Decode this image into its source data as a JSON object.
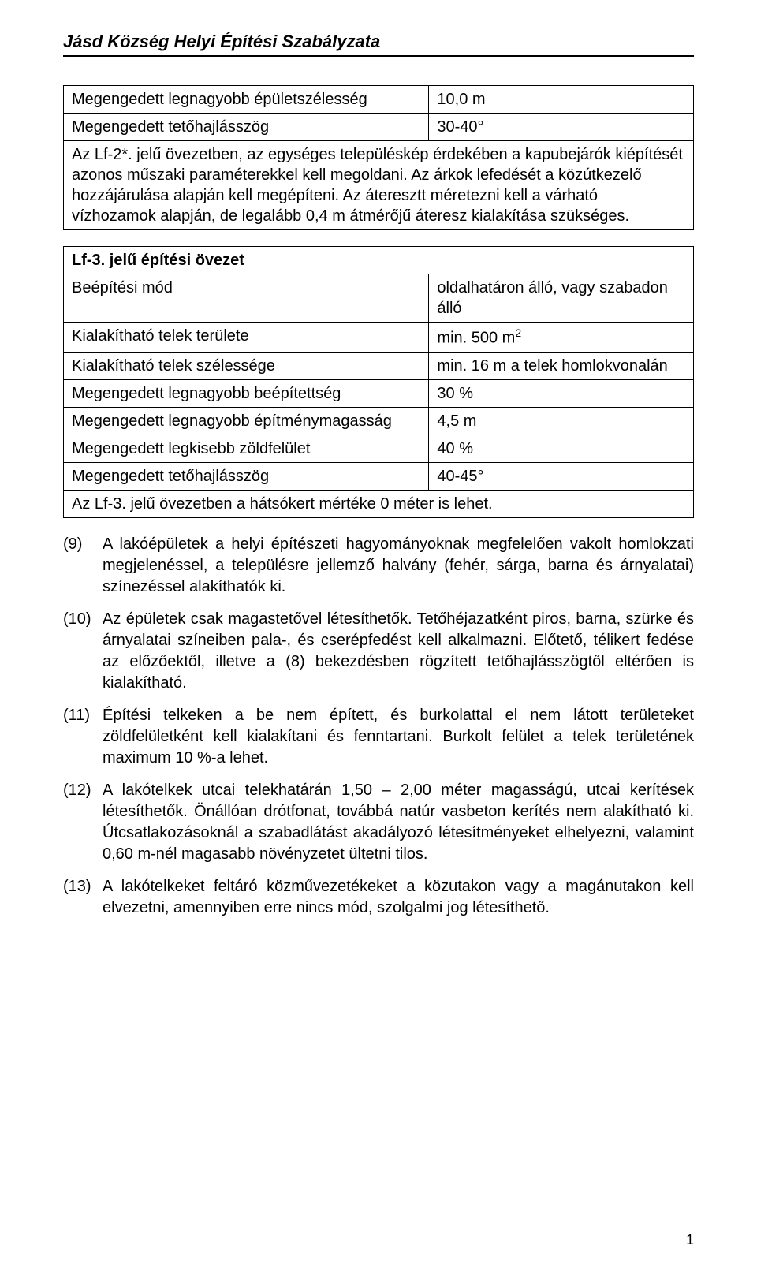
{
  "header": {
    "title": "Jásd Község Helyi Építési Szabályzata"
  },
  "table1": {
    "rows": [
      {
        "label": "Megengedett legnagyobb épületszélesség",
        "value": "10,0 m"
      },
      {
        "label": "Megengedett tetőhajlásszög",
        "value": "30-40°"
      }
    ],
    "note": "Az Lf-2*. jelű övezetben, az egységes településkép érdekében a kapubejárók kiépítését azonos műszaki paraméterekkel kell megoldani. Az árkok lefedését a közútkezelő hozzájárulása alapján kell megépíteni. Az áteresztt méretezni kell a várható vízhozamok alapján, de legalább 0,4 m átmérőjű áteresz kialakítása szükséges."
  },
  "table2": {
    "title": "Lf-3. jelű építési övezet",
    "rows": [
      {
        "label": "Beépítési mód",
        "value": "oldalhatáron álló, vagy szabadon álló"
      },
      {
        "label": "Kialakítható telek területe",
        "value_html": "min. 500 m<sup>2</sup>"
      },
      {
        "label": "Kialakítható telek szélessége",
        "value": "min. 16 m a telek homlokvonalán"
      },
      {
        "label": "Megengedett legnagyobb beépítettség",
        "value": "30 %"
      },
      {
        "label": "Megengedett legnagyobb építménymagasság",
        "value": "4,5 m"
      },
      {
        "label": "Megengedett legkisebb zöldfelület",
        "value": "40 %"
      },
      {
        "label": "Megengedett tetőhajlásszög",
        "value": "40-45°"
      }
    ],
    "note": "Az Lf-3. jelű övezetben a hátsókert mértéke 0 méter is lehet."
  },
  "paragraphs": [
    {
      "num": "(9)",
      "text": "A lakóépületek a helyi építészeti hagyományoknak megfelelően vakolt homlokzati megjelenéssel, a településre jellemző halvány (fehér, sárga, barna és árnyalatai) színezéssel alakíthatók ki."
    },
    {
      "num": "(10)",
      "text": "Az épületek csak magastetővel létesíthetők. Tetőhéjazatként piros, barna, szürke és árnyalatai színeiben pala-, és cserépfedést kell alkalmazni. Előtető, télikert fedése az előzőektől, illetve a (8) bekezdésben rögzített tetőhajlásszögtől eltérően is kialakítható."
    },
    {
      "num": "(11)",
      "text": "Építési telkeken a be nem épített, és burkolattal el nem látott területeket zöldfelületként kell kialakítani és fenntartani. Burkolt felület a telek területének maximum 10 %-a lehet."
    },
    {
      "num": "(12)",
      "text": "A lakótelkek utcai telekhatárán 1,50 – 2,00 méter magasságú, utcai kerítések létesíthetők. Önállóan drótfonat, továbbá natúr vasbeton kerítés nem alakítható ki. Útcsatlakozásoknál a szabadlátást akadályozó létesítményeket elhelyezni, valamint 0,60 m-nél magasabb növényzetet ültetni tilos."
    },
    {
      "num": "(13)",
      "text": "A lakótelkeket feltáró közművezetékeket a közutakon vagy a magánutakon kell elvezetni, amennyiben erre nincs mód, szolgalmi jog létesíthető."
    }
  ],
  "page_number": "1"
}
